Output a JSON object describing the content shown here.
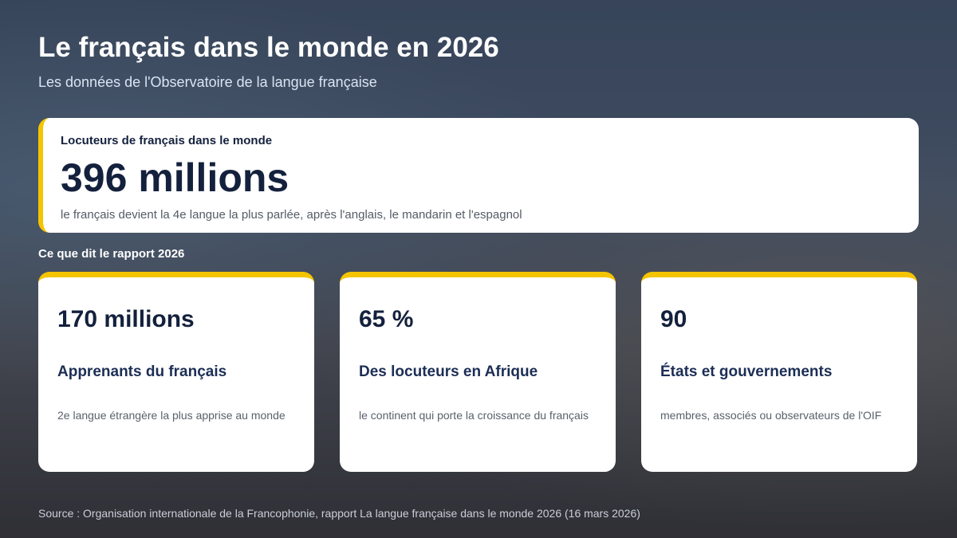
{
  "header": {
    "title": "Le français dans le monde en 2026",
    "subtitle": "Les données de l'Observatoire de la langue française"
  },
  "highlight": {
    "label": "Locuteurs de français dans le monde",
    "value": "396 millions",
    "note": "le français devient la 4e langue la plus parlée, après l'anglais, le mandarin et l'espagnol"
  },
  "section_title": "Ce que dit le rapport 2026",
  "cards": [
    {
      "value": "170 millions",
      "title": "Apprenants du français",
      "note": "2e langue étrangère la plus apprise au monde"
    },
    {
      "value": "65 %",
      "title": "Des locuteurs en Afrique",
      "note": "le continent qui porte la croissance du français"
    },
    {
      "value": "90",
      "title": "États et gouvernements",
      "note": "membres, associés ou observateurs de l'OIF"
    }
  ],
  "source": "Source : Organisation internationale de la Francophonie, rapport La langue française dans le monde 2026 (16 mars 2026)"
}
